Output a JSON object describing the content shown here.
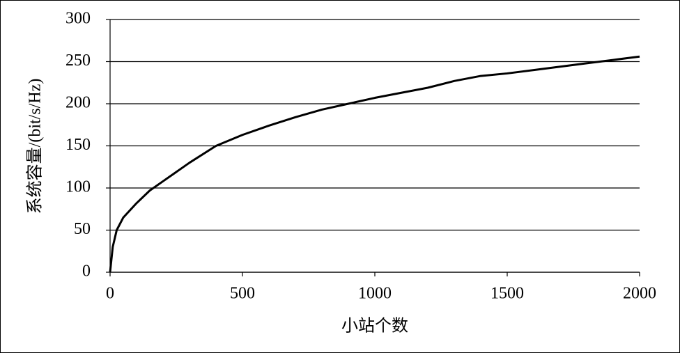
{
  "chart_data": {
    "type": "line",
    "x_label": "小站个数",
    "y_label": "系统容量/(bit/s/Hz)",
    "series": [
      {
        "name": "系统容量",
        "color": "#000000",
        "x": [
          0,
          10,
          25,
          50,
          100,
          150,
          200,
          300,
          400,
          500,
          600,
          700,
          800,
          900,
          1000,
          1100,
          1200,
          1300,
          1400,
          1500,
          1600,
          1700,
          1800,
          1900,
          2000
        ],
        "values": [
          0,
          30,
          50,
          65,
          82,
          97,
          108,
          130,
          150,
          163,
          174,
          184,
          193,
          200,
          207,
          213,
          219,
          227,
          233,
          236,
          240,
          244,
          248,
          252,
          256
        ]
      }
    ],
    "xlim": [
      0,
      2000
    ],
    "xticks": [
      0,
      500,
      1000,
      1500,
      2000
    ],
    "ylim": [
      0,
      300
    ],
    "yticks": [
      0,
      50,
      100,
      150,
      200,
      250,
      300
    ],
    "grid": true
  }
}
